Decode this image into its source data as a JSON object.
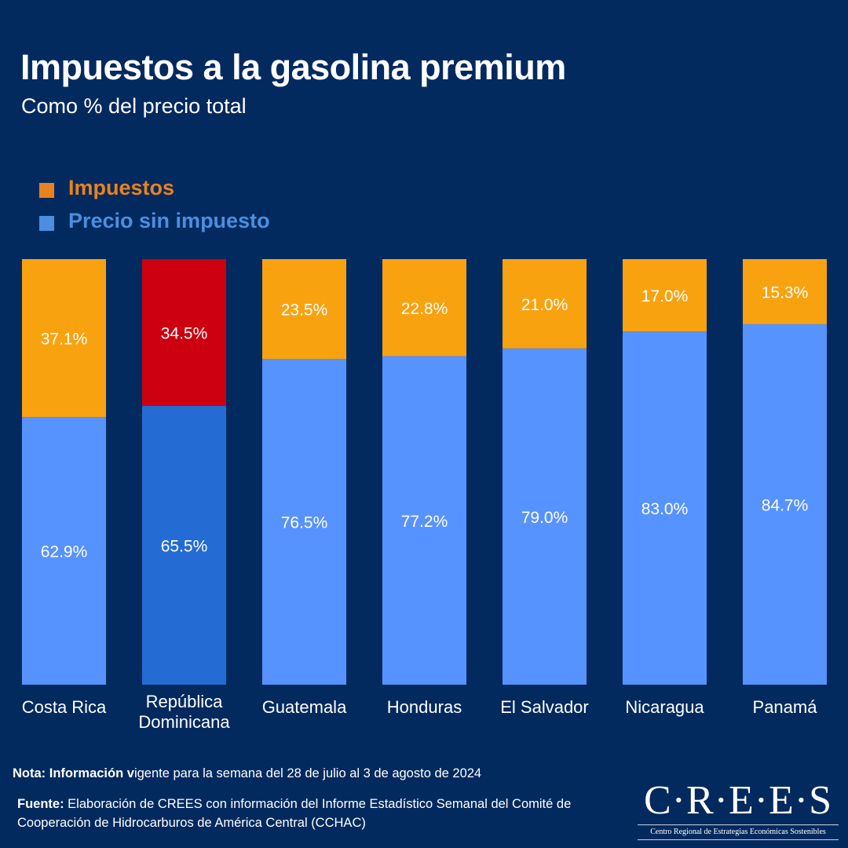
{
  "header": {
    "title": "Impuestos a la gasolina premium",
    "subtitle": "Como % del precio total"
  },
  "legend": [
    {
      "label": "Impuestos",
      "color": "#e8821f"
    },
    {
      "label": "Precio sin impuesto",
      "color": "#4a8fe0"
    }
  ],
  "chart_data": {
    "type": "bar",
    "stacked": true,
    "orientation": "vertical",
    "title": "Impuestos a la gasolina premium",
    "subtitle": "Como % del precio total",
    "xlabel": "",
    "ylabel": "",
    "ylim": [
      0,
      100
    ],
    "grid": false,
    "legend_position": "top-left",
    "categories": [
      "Costa Rica",
      "República Dominicana",
      "Guatemala",
      "Honduras",
      "El Salvador",
      "Nicaragua",
      "Panamá"
    ],
    "highlight_category": "República Dominicana",
    "series": [
      {
        "name": "Precio sin impuesto",
        "values": [
          62.9,
          65.5,
          76.5,
          77.2,
          79.0,
          83.0,
          84.7
        ],
        "color": "#5793fe",
        "highlight_color": "#246cd3"
      },
      {
        "name": "Impuestos",
        "values": [
          37.1,
          34.5,
          23.5,
          22.8,
          21.0,
          17.0,
          15.3
        ],
        "color": "#f9a20f",
        "highlight_color": "#cc0011"
      }
    ],
    "data_labels": {
      "Precio sin impuesto": [
        "62.9%",
        "65.5%",
        "76.5%",
        "77.2%",
        "79.0%",
        "83.0%",
        "84.7%"
      ],
      "Impuestos": [
        "37.1%",
        "34.5%",
        "23.5%",
        "22.8%",
        "21.0%",
        "17.0%",
        "15.3%"
      ]
    },
    "category_label_color": "#ffffff",
    "highlight_label_color": "#f2f24a"
  },
  "footer": {
    "note_label": "Nota: Información v",
    "note_text": "igente para la semana del 28 de julio al 3 de agosto de 2024",
    "source_label": "Fuente:",
    "source_text": " Elaboración de CREES con información del Informe Estadístico Semanal del Comité de Cooperación de Hidrocarburos de América Central (CCHAC)"
  },
  "logo": {
    "name": "C·R·E·E·S",
    "tagline": "Centro Regional de Estrategias Económicas Sostenibles"
  }
}
